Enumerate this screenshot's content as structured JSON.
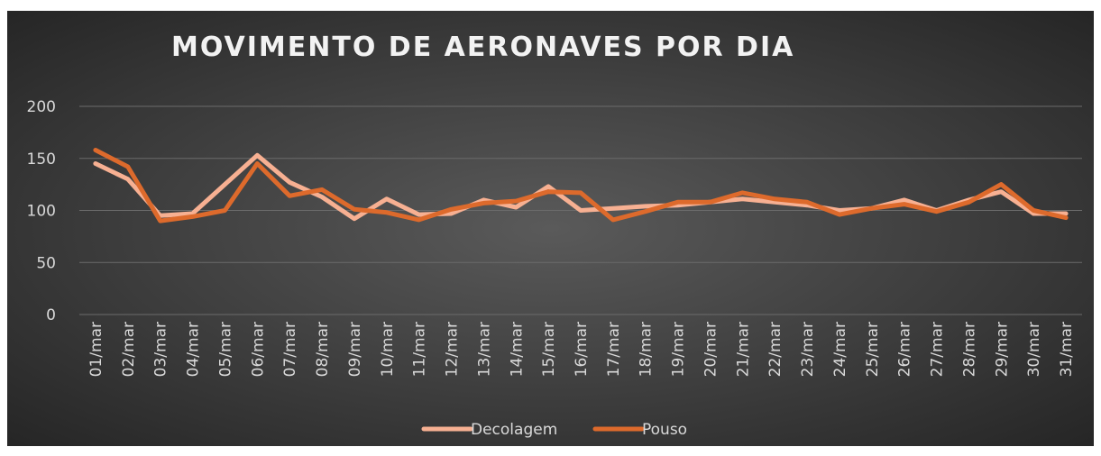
{
  "chart_data": {
    "type": "line",
    "title": "MOVIMENTO DE AERONAVES POR DIA",
    "categories": [
      "01/mar",
      "02/mar",
      "03/mar",
      "04/mar",
      "05/mar",
      "06/mar",
      "07/mar",
      "08/mar",
      "09/mar",
      "10/mar",
      "11/mar",
      "12/mar",
      "13/mar",
      "14/mar",
      "15/mar",
      "16/mar",
      "17/mar",
      "18/mar",
      "19/mar",
      "20/mar",
      "21/mar",
      "22/mar",
      "23/mar",
      "24/mar",
      "25/mar",
      "26/mar",
      "27/mar",
      "28/mar",
      "29/mar",
      "30/mar",
      "31/mar"
    ],
    "series": [
      {
        "name": "Decolagem",
        "color": "#f7b092",
        "values": [
          145,
          130,
          95,
          97,
          125,
          153,
          127,
          113,
          92,
          111,
          96,
          97,
          110,
          103,
          123,
          100,
          102,
          104,
          105,
          108,
          111,
          108,
          105,
          100,
          102,
          110,
          100,
          110,
          118,
          97,
          97
        ]
      },
      {
        "name": "Pouso",
        "color": "#dd6a2c",
        "values": [
          158,
          142,
          90,
          94,
          100,
          145,
          114,
          120,
          101,
          98,
          91,
          101,
          107,
          109,
          118,
          117,
          91,
          99,
          108,
          108,
          117,
          111,
          108,
          96,
          102,
          106,
          99,
          108,
          125,
          100,
          93
        ]
      }
    ],
    "ylim": [
      0,
      200
    ],
    "yticks": [
      0,
      50,
      100,
      150,
      200
    ],
    "grid": true,
    "legend": "bottom"
  }
}
